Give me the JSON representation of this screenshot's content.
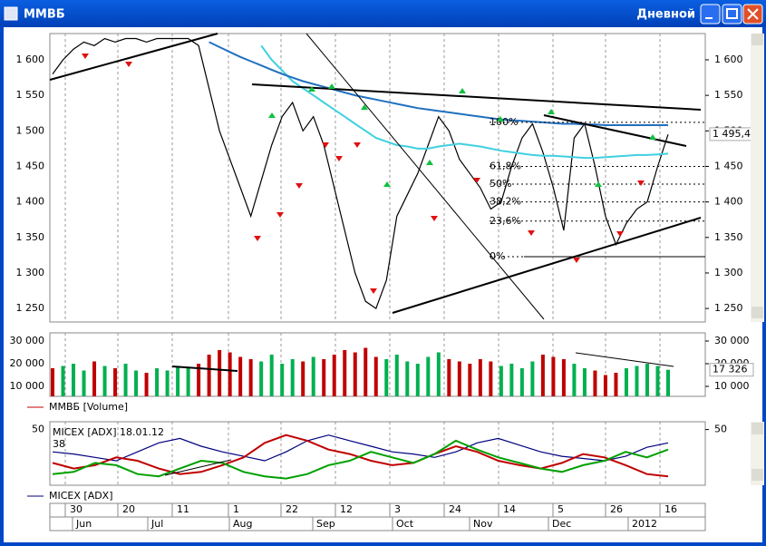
{
  "window": {
    "title": "ММВБ",
    "mode": "Дневной"
  },
  "time_axis": {
    "days": [
      "30",
      "20",
      "11",
      "1",
      "22",
      "12",
      "3",
      "24",
      "14",
      "5",
      "26",
      "16"
    ],
    "months": [
      "Jun",
      "Jul",
      "Aug",
      "Sep",
      "Oct",
      "Nov",
      "Dec",
      "2012"
    ]
  },
  "chart_data": [
    {
      "type": "line",
      "ylim": [
        1231,
        1637
      ],
      "yticks": [
        {
          "value": 1250,
          "label": "1 250"
        },
        {
          "value": 1300,
          "label": "1 300"
        },
        {
          "value": 1350,
          "label": "1 350"
        },
        {
          "value": 1400,
          "label": "1 400"
        },
        {
          "value": 1450,
          "label": "1 450"
        },
        {
          "value": 1500,
          "label": "1 500"
        },
        {
          "value": 1550,
          "label": "1 550"
        },
        {
          "value": 1600,
          "label": "1 600"
        }
      ],
      "last_value": {
        "value": 1495.42,
        "label": "1 495,42"
      },
      "fib_levels": [
        {
          "value": 1512,
          "label": "100%"
        },
        {
          "value": 1450,
          "label": "61,8%"
        },
        {
          "value": 1425,
          "label": "50%"
        },
        {
          "value": 1400,
          "label": "38,2%"
        },
        {
          "value": 1373,
          "label": "23,6%"
        },
        {
          "value": 1323,
          "label": "0%"
        }
      ],
      "series": [
        {
          "color": "#000000",
          "values": [
            1580,
            1600,
            1615,
            1625,
            1620,
            1630,
            1625,
            1630,
            1630,
            1625,
            1630,
            1630,
            1630,
            1630,
            1620,
            1560,
            1500,
            1460,
            1420,
            1380,
            1430,
            1480,
            1520,
            1540,
            1500,
            1520,
            1480,
            1420,
            1360,
            1300,
            1260,
            1250,
            1290,
            1380,
            1410,
            1440,
            1480,
            1520,
            1500,
            1460,
            1440,
            1420,
            1390,
            1400,
            1450,
            1490,
            1510,
            1470,
            1420,
            1360,
            1490,
            1510,
            1450,
            1380,
            1340,
            1370,
            1390,
            1400,
            1450,
            1495
          ]
        },
        {
          "color": "#40d0e0",
          "values": [
            null,
            null,
            null,
            null,
            null,
            null,
            null,
            null,
            null,
            null,
            null,
            null,
            null,
            null,
            null,
            null,
            null,
            null,
            null,
            null,
            1620,
            1600,
            1585,
            1570,
            1560,
            1550,
            1540,
            1530,
            1520,
            1510,
            1500,
            1490,
            1485,
            1480,
            1478,
            1475,
            1475,
            1478,
            1480,
            1482,
            1480,
            1478,
            1475,
            1472,
            1470,
            1468,
            1466,
            1465,
            1465,
            1464,
            1463,
            1462,
            1462,
            1463,
            1464,
            1465,
            1466,
            1466,
            1467,
            1468
          ]
        },
        {
          "color": "#2070c0",
          "values": [
            null,
            null,
            null,
            null,
            null,
            null,
            null,
            null,
            null,
            null,
            null,
            null,
            null,
            null,
            null,
            1625,
            1618,
            1611,
            1604,
            1598,
            1592,
            1586,
            1580,
            1575,
            1570,
            1566,
            1562,
            1558,
            1554,
            1550,
            1547,
            1544,
            1541,
            1538,
            1535,
            1532,
            1530,
            1528,
            1526,
            1524,
            1522,
            1520,
            1518,
            1516,
            1515,
            1514,
            1513,
            1512,
            1511,
            1510,
            1510,
            1509,
            1509,
            1508,
            1508,
            1508,
            1508,
            1508,
            1508,
            1508
          ]
        }
      ]
    },
    {
      "type": "bar",
      "ylim": [
        5600,
        33600
      ],
      "yticks": [
        {
          "value": 10000,
          "label": "10 000"
        },
        {
          "value": 20000,
          "label": "20 000"
        },
        {
          "value": 30000,
          "label": "30 000"
        }
      ],
      "last_value": {
        "value": 17326,
        "label": "17 326"
      },
      "up_color": "#00b050",
      "series": [
        {
          "name": "ММВБ [Volume]",
          "color": "#c00000",
          "values": [
            18000,
            19000,
            20000,
            17000,
            21000,
            19000,
            18000,
            20000,
            17000,
            16000,
            18000,
            17000,
            19000,
            18000,
            20000,
            24000,
            26000,
            25000,
            23000,
            22000,
            21000,
            24000,
            20000,
            22000,
            21000,
            23000,
            22000,
            24000,
            26000,
            25000,
            27000,
            23000,
            22000,
            24000,
            21000,
            20000,
            23000,
            25000,
            22000,
            21000,
            20000,
            22000,
            21000,
            19000,
            20000,
            18000,
            21000,
            24000,
            23000,
            22000,
            20000,
            18000,
            17000,
            15000,
            16000,
            18000,
            19000,
            20000,
            19000,
            17326
          ]
        }
      ]
    },
    {
      "type": "line",
      "title": "MICEX [ADX] 18.01.12",
      "last_value": 38,
      "ylim": [
        0,
        57
      ],
      "yticks": [
        50
      ],
      "series": [
        {
          "name": "MICEX [ADX]",
          "color": "#000080",
          "values": [
            30,
            28,
            25,
            22,
            30,
            38,
            42,
            35,
            30,
            26,
            22,
            30,
            40,
            45,
            40,
            35,
            30,
            28,
            25,
            30,
            38,
            42,
            36,
            30,
            26,
            24,
            22,
            26,
            34,
            38
          ]
        },
        {
          "color": "#c00000",
          "values": [
            20,
            15,
            18,
            25,
            22,
            15,
            10,
            12,
            18,
            25,
            38,
            45,
            40,
            32,
            28,
            22,
            18,
            20,
            28,
            35,
            30,
            22,
            18,
            15,
            20,
            28,
            25,
            18,
            10,
            8
          ]
        },
        {
          "color": "#00a000",
          "values": [
            10,
            12,
            20,
            18,
            10,
            8,
            15,
            22,
            20,
            12,
            8,
            6,
            10,
            18,
            22,
            30,
            25,
            20,
            28,
            40,
            32,
            25,
            20,
            15,
            12,
            18,
            22,
            30,
            25,
            32
          ]
        }
      ]
    }
  ]
}
